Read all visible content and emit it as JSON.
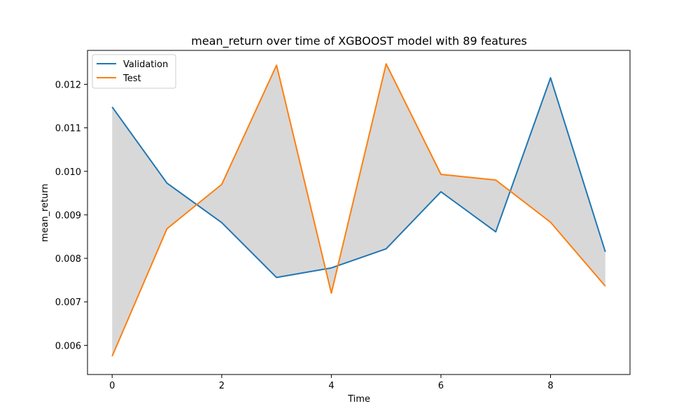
{
  "chart_data": {
    "type": "line",
    "title": "mean_return over time of XGBOOST model with 89 features",
    "xlabel": "Time",
    "ylabel": "mean_return",
    "x": [
      0,
      1,
      2,
      3,
      4,
      5,
      6,
      7,
      8,
      9
    ],
    "xlim": [
      -0.45,
      9.45
    ],
    "ylim": [
      0.00533,
      0.01278
    ],
    "xticks": [
      0,
      2,
      4,
      6,
      8
    ],
    "xtick_labels": [
      "0",
      "2",
      "4",
      "6",
      "8"
    ],
    "yticks": [
      0.006,
      0.007,
      0.008,
      0.009,
      0.01,
      0.011,
      0.012
    ],
    "ytick_labels": [
      "0.006",
      "0.007",
      "0.008",
      "0.009",
      "0.010",
      "0.011",
      "0.012"
    ],
    "series": [
      {
        "name": "Validation",
        "color": "#1f77b4",
        "values": [
          0.01148,
          0.00973,
          0.00882,
          0.00756,
          0.00778,
          0.00822,
          0.00953,
          0.00861,
          0.01215,
          0.00815
        ]
      },
      {
        "name": "Test",
        "color": "#ff7f0e",
        "values": [
          0.00575,
          0.00868,
          0.0097,
          0.01244,
          0.0072,
          0.01247,
          0.00993,
          0.0098,
          0.00883,
          0.00736
        ]
      }
    ],
    "fill_between": {
      "color": "#d8d8d8",
      "series": [
        "Validation",
        "Test"
      ]
    },
    "legend_position": "upper-left",
    "grid": false
  }
}
